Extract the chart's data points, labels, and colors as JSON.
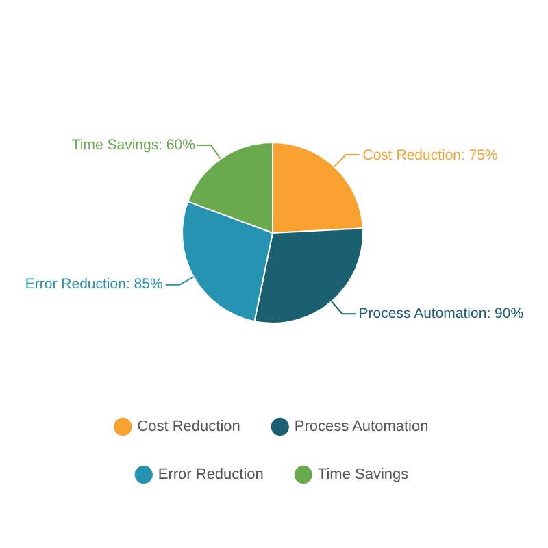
{
  "chart_data": {
    "type": "pie",
    "categories": [
      "Cost Reduction",
      "Process Automation",
      "Error Reduction",
      "Time Savings"
    ],
    "values": [
      75,
      90,
      85,
      60
    ],
    "value_labels": [
      "Cost Reduction: 75%",
      "Process Automation: 90%",
      "Error Reduction: 85%",
      "Time Savings: 60%"
    ],
    "colors": [
      "#f8a12f",
      "#1b6070",
      "#2693b3",
      "#6aaa4f"
    ],
    "legend": "bottom"
  }
}
